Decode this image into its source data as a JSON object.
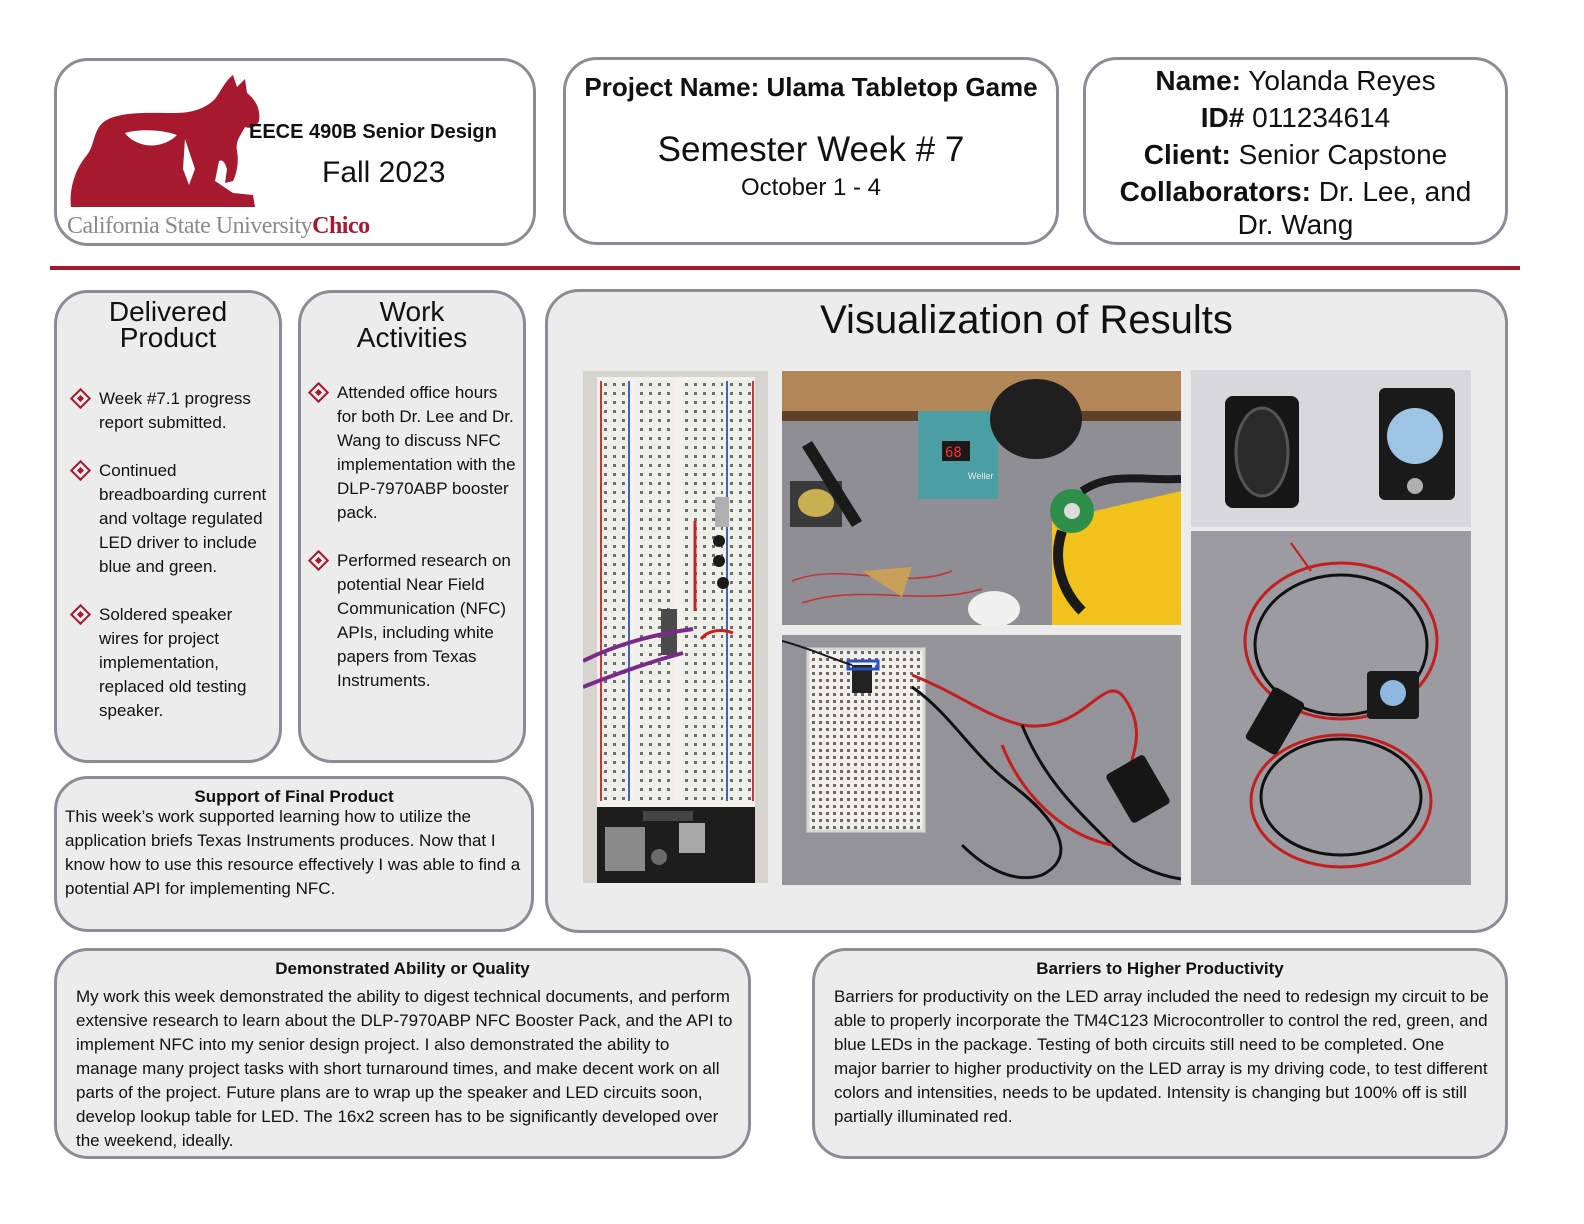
{
  "header": {
    "course_title": "EECE 490B Senior Design",
    "term": "Fall 2023",
    "university_prefix": "California State University",
    "university_suffix": "Chico",
    "project_name": "Project Name: Ulama Tabletop Game",
    "week_label": "Semester Week # 7",
    "week_dates": "October 1 - 4",
    "name_label": "Name:",
    "name_value": "Yolanda Reyes",
    "id_label": "ID#",
    "id_value": "011234614",
    "client_label": "Client:",
    "client_value": "Senior Capstone",
    "collab_label": "Collaborators:",
    "collab_value": "Dr. Lee, and",
    "collab_value_2": "Dr. Wang"
  },
  "delivered": {
    "title_1": "Delivered",
    "title_2": "Product",
    "items": [
      "Week #7.1 progress report submitted.",
      "Continued breadboarding current and voltage regulated LED driver to include blue and green.",
      "Soldered speaker wires for project implementation, replaced old testing speaker."
    ]
  },
  "work": {
    "title_1": "Work",
    "title_2": "Activities",
    "items": [
      "Attended office hours for both Dr. Lee and Dr. Wang to discuss NFC implementation with the DLP-7970ABP booster pack.",
      "Performed research on potential Near Field Communication (NFC) APIs, including white papers from Texas Instruments."
    ]
  },
  "support": {
    "title": "Support of Final Product",
    "body": "This week’s work supported learning how to utilize the application briefs Texas Instruments produces. Now that I know how to use this resource effectively I was able to find a potential API for implementing NFC."
  },
  "visualization": {
    "title": "Visualization of Results",
    "photo_display_text": "68",
    "photo_brand_text": "Weller"
  },
  "ability": {
    "title": "Demonstrated Ability or Quality",
    "body": "My work this week demonstrated the ability to digest technical documents, and perform extensive research to learn about the DLP-7970ABP NFC Booster Pack, and the API to implement NFC into my senior design project. I also demonstrated the ability to manage many project tasks with short turnaround times, and make decent work on all parts of the project. Future plans are to wrap up the speaker and LED circuits soon, develop lookup table for LED. The 16x2 screen has to be significantly developed over the weekend, ideally."
  },
  "barriers": {
    "title": "Barriers to Higher Productivity",
    "body": "Barriers for productivity on the LED array included the need to redesign my circuit to be able to properly incorporate the TM4C123 Microcontroller to control the red, green, and blue LEDs in the package. Testing of both circuits still need to be completed. One major barrier to higher productivity on the LED array is my driving code, to test different colors and intensities, needs to be updated. Intensity is changing but 100% off is still partially illuminated red."
  },
  "colors": {
    "brand_red": "#a6192e",
    "box_border": "#8c8c94",
    "panel_grey": "#ececec"
  }
}
